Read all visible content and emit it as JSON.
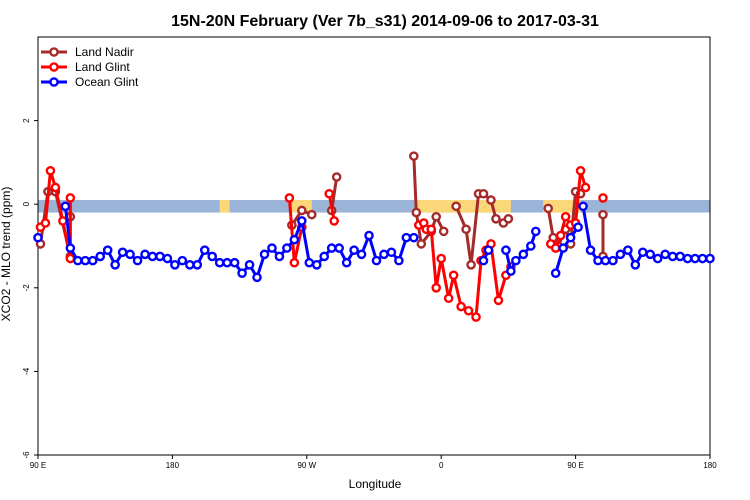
{
  "chart_data": {
    "type": "line",
    "title": "15N-20N February (Ver 7b_s31)   2014-09-06 to 2017-03-31",
    "xlabel": "Longitude",
    "ylabel": "XCO2 - MLO trend (ppm)",
    "xlim": [
      -90,
      180
    ],
    "ylim": [
      -6,
      4
    ],
    "x_ticks": [
      {
        "value": -90,
        "label": "90 E"
      },
      {
        "value": -36,
        "label": "180"
      },
      {
        "value": 18,
        "label": "90 W"
      },
      {
        "value": 72,
        "label": "0"
      },
      {
        "value": 126,
        "label": "90 E"
      },
      {
        "value": 180,
        "label": "180"
      }
    ],
    "y_ticks": [
      {
        "value": -6,
        "label": "-6"
      },
      {
        "value": -4,
        "label": "-4"
      },
      {
        "value": -2,
        "label": "-2"
      },
      {
        "value": 0,
        "label": "0"
      },
      {
        "value": 2,
        "label": "2"
      }
    ],
    "legend": {
      "position": "top-left",
      "entries": [
        "Land Nadir",
        "Land Glint",
        "Ocean Glint"
      ]
    },
    "colors": {
      "Land Nadir": "#a52a2a",
      "Land Glint": "#ff0000",
      "Ocean Glint": "#0000ff",
      "band_ocean": "#9ab4d8",
      "band_land": "#fbd77a"
    },
    "series": [
      {
        "name": "Land Nadir",
        "color": "#a52a2a",
        "segments": [
          [
            [
              -89,
              -0.95
            ],
            [
              -86,
              0.3
            ],
            [
              -83,
              0.3
            ],
            [
              -77,
              -1.25
            ]
          ],
          [
            [
              -77,
              -0.3
            ]
          ],
          [
            [
              12,
              -0.5
            ],
            [
              16,
              -0.15
            ],
            [
              20,
              -0.25
            ]
          ],
          [
            [
              28,
              -0.15
            ],
            [
              30,
              0.65
            ]
          ],
          [
            [
              61,
              1.15
            ],
            [
              62,
              -0.2
            ],
            [
              64,
              -0.95
            ],
            [
              68,
              -0.65
            ],
            [
              70,
              -0.3
            ],
            [
              73,
              -0.65
            ]
          ],
          [
            [
              78,
              -0.05
            ],
            [
              82,
              -0.6
            ],
            [
              84,
              -1.45
            ],
            [
              87,
              0.25
            ],
            [
              89,
              0.25
            ],
            [
              92,
              0.1
            ],
            [
              94,
              -0.35
            ],
            [
              97,
              -0.45
            ],
            [
              99,
              -0.35
            ]
          ],
          [
            [
              115,
              -0.1
            ],
            [
              117,
              -0.8
            ],
            [
              119,
              -1.0
            ],
            [
              122,
              -0.6
            ],
            [
              124,
              -0.95
            ],
            [
              126,
              0.3
            ],
            [
              128,
              0.25
            ]
          ],
          [
            [
              137,
              -0.25
            ],
            [
              137,
              -1.25
            ]
          ]
        ]
      },
      {
        "name": "Land Glint",
        "color": "#ff0000",
        "segments": [
          [
            [
              -89,
              -0.55
            ],
            [
              -87,
              -0.45
            ],
            [
              -85,
              0.8
            ],
            [
              -83,
              0.4
            ],
            [
              -80,
              -0.4
            ],
            [
              -77,
              -1.3
            ],
            [
              -77,
              0.15
            ]
          ],
          [
            [
              11,
              0.15
            ],
            [
              13,
              -1.4
            ],
            [
              16,
              -0.55
            ]
          ],
          [
            [
              27,
              0.25
            ],
            [
              29,
              -0.4
            ]
          ],
          [
            [
              63,
              -0.5
            ],
            [
              65,
              -0.45
            ],
            [
              66,
              -0.6
            ],
            [
              68,
              -0.6
            ],
            [
              70,
              -2.0
            ],
            [
              72,
              -1.3
            ],
            [
              75,
              -2.25
            ],
            [
              77,
              -1.7
            ],
            [
              80,
              -2.45
            ],
            [
              83,
              -2.55
            ],
            [
              86,
              -2.7
            ],
            [
              88,
              -1.35
            ],
            [
              90,
              -1.1
            ],
            [
              92,
              -0.95
            ],
            [
              95,
              -2.3
            ],
            [
              98,
              -1.7
            ],
            [
              100,
              -1.5
            ]
          ],
          [
            [
              116,
              -0.95
            ],
            [
              118,
              -1.05
            ],
            [
              120,
              -0.75
            ],
            [
              122,
              -0.3
            ],
            [
              124,
              -0.5
            ],
            [
              126,
              -0.45
            ],
            [
              128,
              0.8
            ],
            [
              130,
              0.4
            ]
          ],
          [
            [
              137,
              0.15
            ]
          ]
        ]
      },
      {
        "name": "Ocean Glint",
        "color": "#0000ff",
        "segments": [
          [
            [
              -90,
              -0.8
            ]
          ],
          [
            [
              -79,
              -0.05
            ],
            [
              -77,
              -1.05
            ],
            [
              -74,
              -1.35
            ],
            [
              -71,
              -1.35
            ],
            [
              -68,
              -1.35
            ],
            [
              -65,
              -1.25
            ],
            [
              -62,
              -1.1
            ],
            [
              -59,
              -1.45
            ],
            [
              -56,
              -1.15
            ],
            [
              -53,
              -1.2
            ],
            [
              -50,
              -1.35
            ],
            [
              -47,
              -1.2
            ],
            [
              -44,
              -1.25
            ],
            [
              -41,
              -1.25
            ],
            [
              -38,
              -1.3
            ],
            [
              -35,
              -1.45
            ],
            [
              -32,
              -1.35
            ],
            [
              -29,
              -1.45
            ],
            [
              -26,
              -1.45
            ],
            [
              -23,
              -1.1
            ],
            [
              -20,
              -1.25
            ],
            [
              -17,
              -1.4
            ],
            [
              -14,
              -1.4
            ],
            [
              -11,
              -1.4
            ],
            [
              -8,
              -1.65
            ],
            [
              -5,
              -1.45
            ],
            [
              -2,
              -1.75
            ],
            [
              1,
              -1.2
            ],
            [
              4,
              -1.05
            ],
            [
              7,
              -1.25
            ],
            [
              10,
              -1.05
            ],
            [
              13,
              -0.85
            ],
            [
              16,
              -0.4
            ],
            [
              19,
              -1.4
            ],
            [
              22,
              -1.45
            ],
            [
              25,
              -1.25
            ],
            [
              28,
              -1.05
            ],
            [
              31,
              -1.05
            ],
            [
              34,
              -1.4
            ],
            [
              37,
              -1.1
            ],
            [
              40,
              -1.2
            ],
            [
              43,
              -0.75
            ],
            [
              46,
              -1.35
            ],
            [
              49,
              -1.2
            ],
            [
              52,
              -1.15
            ],
            [
              55,
              -1.35
            ],
            [
              58,
              -0.8
            ],
            [
              61,
              -0.8
            ]
          ],
          [
            [
              89,
              -1.35
            ],
            [
              91,
              -1.1
            ]
          ],
          [
            [
              98,
              -1.1
            ],
            [
              100,
              -1.6
            ],
            [
              102,
              -1.35
            ],
            [
              105,
              -1.2
            ],
            [
              108,
              -1.0
            ],
            [
              110,
              -0.65
            ]
          ],
          [
            [
              118,
              -1.65
            ],
            [
              121,
              -1.05
            ],
            [
              124,
              -0.8
            ],
            [
              127,
              -0.55
            ]
          ],
          [
            [
              129,
              -0.05
            ],
            [
              132,
              -1.1
            ],
            [
              135,
              -1.35
            ],
            [
              138,
              -1.35
            ],
            [
              141,
              -1.35
            ],
            [
              144,
              -1.2
            ],
            [
              147,
              -1.1
            ],
            [
              150,
              -1.45
            ],
            [
              153,
              -1.15
            ],
            [
              156,
              -1.2
            ],
            [
              159,
              -1.3
            ],
            [
              162,
              -1.2
            ],
            [
              165,
              -1.25
            ],
            [
              168,
              -1.25
            ],
            [
              171,
              -1.3
            ],
            [
              174,
              -1.3
            ],
            [
              177,
              -1.3
            ],
            [
              180,
              -1.3
            ]
          ]
        ]
      }
    ]
  }
}
